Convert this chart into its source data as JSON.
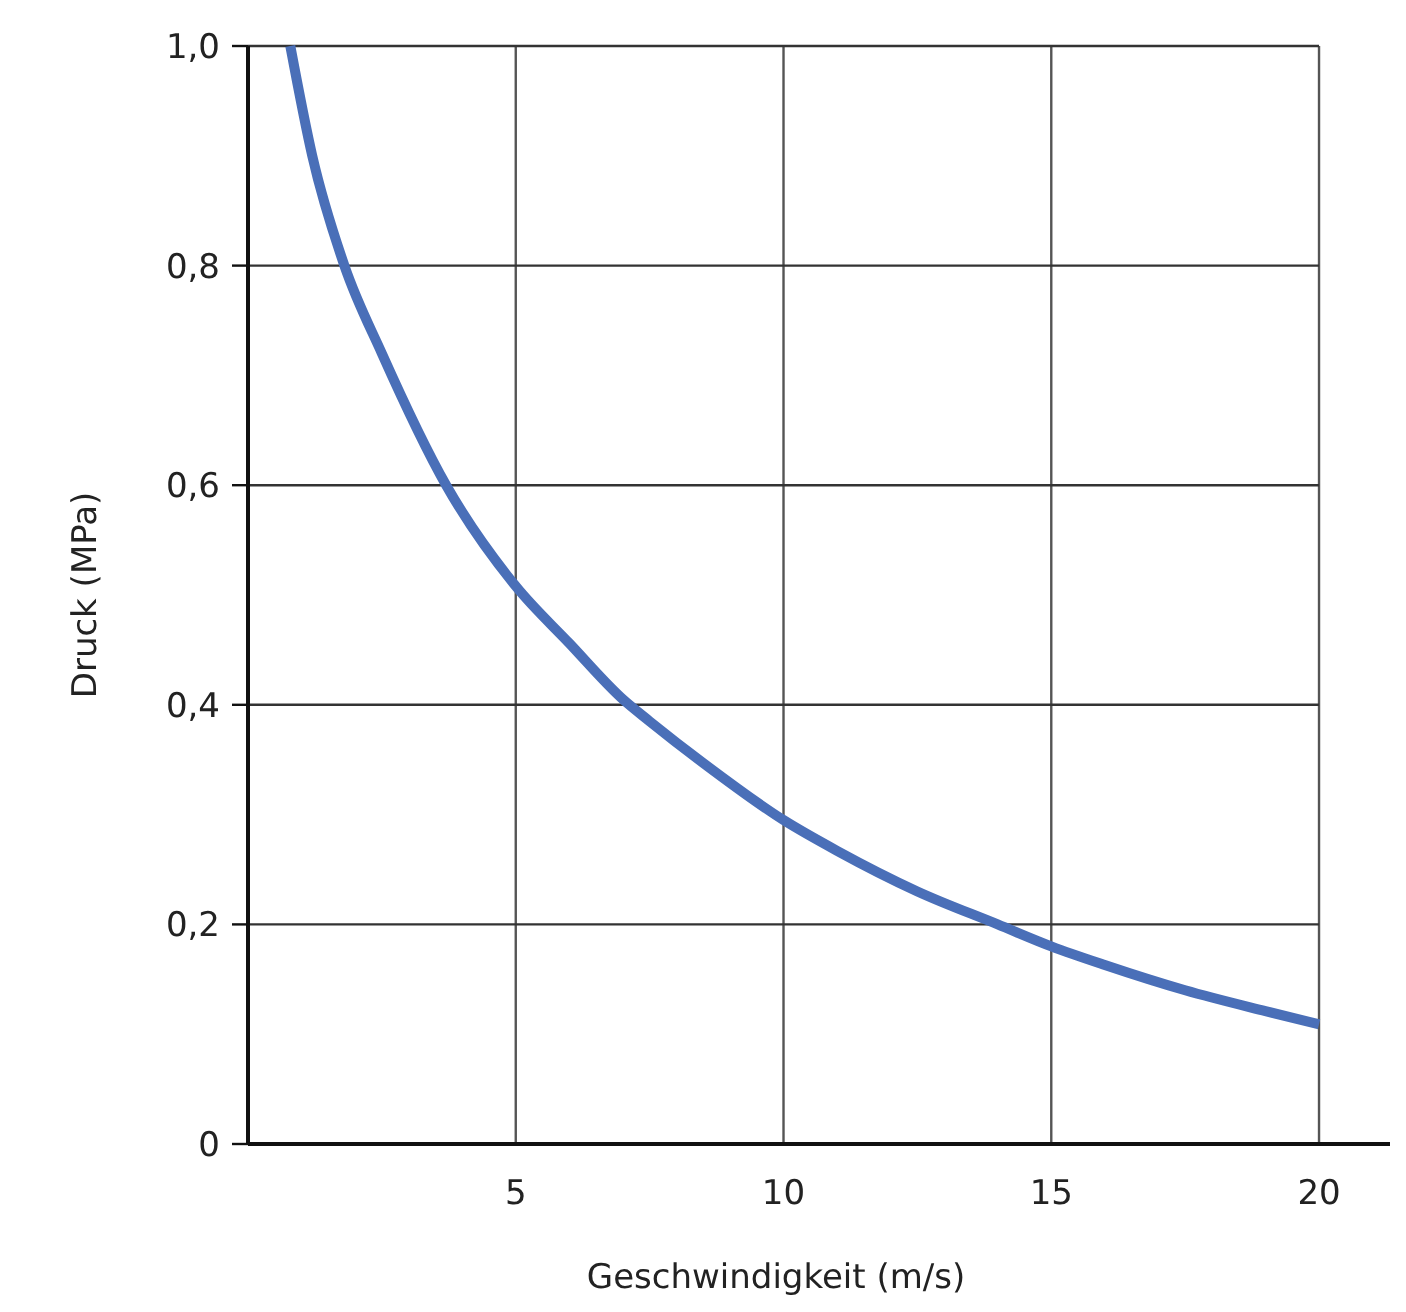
{
  "chart_data": {
    "type": "line",
    "xlabel": "Geschwindigkeit (m/s)",
    "ylabel": "Druck (MPa)",
    "x": [
      0.79,
      1.2,
      1.8,
      2.5,
      3.7,
      5,
      6,
      7,
      7.5,
      8.5,
      10,
      11,
      12.5,
      14,
      15,
      16,
      17.5,
      19,
      20
    ],
    "series": [
      {
        "color": "#4a6fb8",
        "values": [
          1.0,
          0.9,
          0.8,
          0.72,
          0.6,
          0.508,
          0.456,
          0.405,
          0.385,
          0.347,
          0.295,
          0.267,
          0.23,
          0.2,
          0.18,
          0.163,
          0.14,
          0.121,
          0.109
        ]
      }
    ],
    "xlim": [
      0,
      21.4
    ],
    "ylim": [
      0,
      1.0
    ],
    "xticks": [
      5,
      10,
      15,
      20
    ],
    "yticks": [
      {
        "value": 0,
        "label": "0"
      },
      {
        "value": 0.2,
        "label": "0,2"
      },
      {
        "value": 0.4,
        "label": "0,4"
      },
      {
        "value": 0.6,
        "label": "0,6"
      },
      {
        "value": 0.8,
        "label": "0,8"
      },
      {
        "value": 1.0,
        "label": "1,0"
      }
    ],
    "grid": true,
    "marker": "none",
    "line_style": "solid"
  }
}
